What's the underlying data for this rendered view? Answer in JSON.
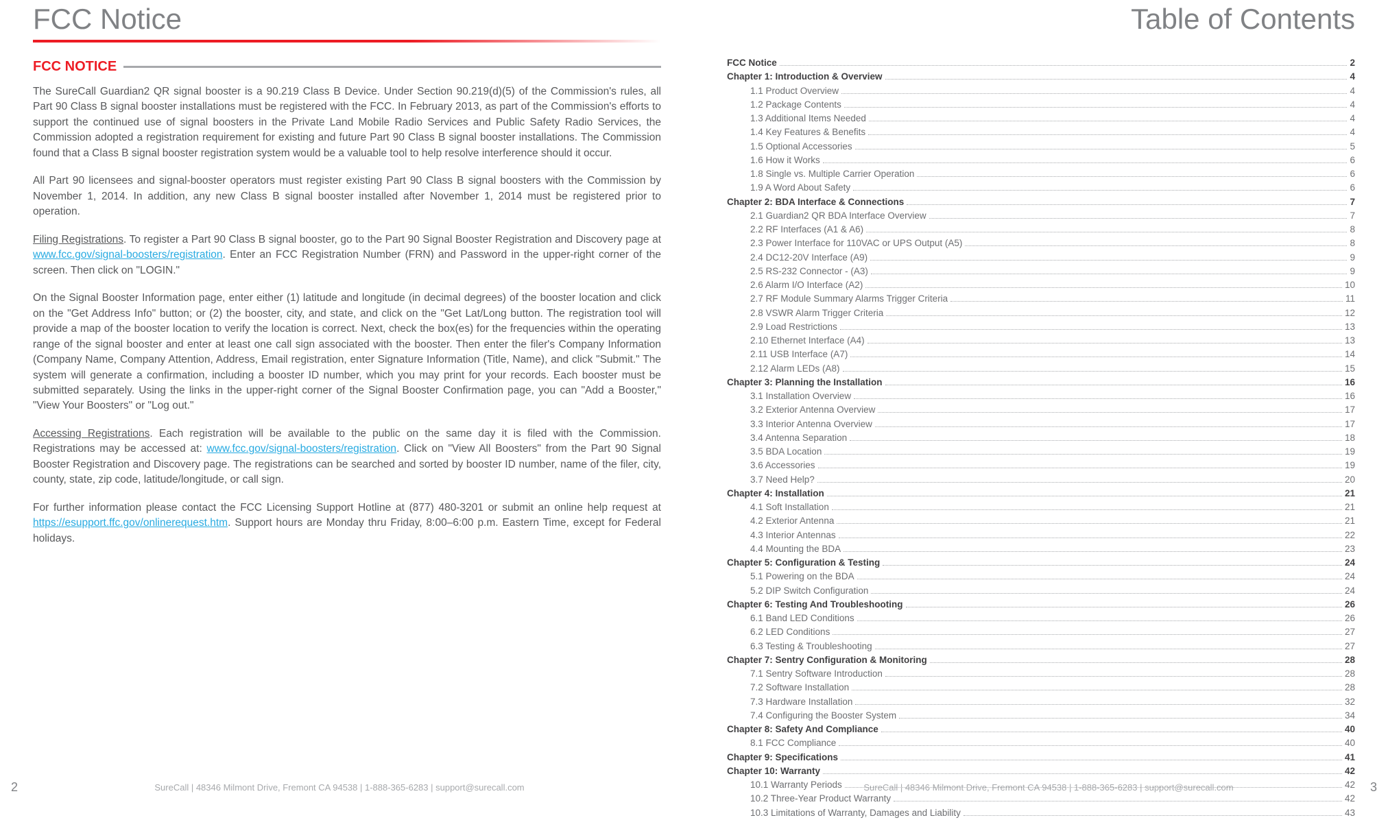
{
  "colors": {
    "accent_red": "#ed1c24",
    "link_blue": "#27aae1",
    "text_gray": "#58595b",
    "header_gray": "#808285",
    "rule_gray": "#a7a9ac",
    "footer_gray": "#a7a9ac",
    "background": "#ffffff"
  },
  "left": {
    "header": "FCC Notice",
    "section_title": "FCC NOTICE",
    "paragraphs": {
      "p1": "The SureCall Guardian2 QR signal booster is a 90.219 Class B Device. Under Section 90.219(d)(5) of the Commission's rules, all Part 90 Class B signal booster installations must be registered with the FCC. In February 2013, as part of the Commission's efforts to support the continued use of signal boosters in the Private Land Mobile Radio Services and Public Safety Radio Services, the Commission adopted a registration requirement for existing and future Part 90 Class B signal booster installations. The Commission found that a Class B signal booster registration system would be a valuable tool to help resolve interference should it occur.",
      "p2": "All Part 90 licensees and signal-booster operators must register existing Part 90 Class B signal boosters with the Commission by November 1, 2014. In addition, any new Class B signal booster installed after November 1, 2014 must be registered prior to operation.",
      "p3_lead": "Filing Registrations",
      "p3_a": ". To register a Part 90 Class B signal booster, go to the Part 90 Signal Booster Registration and Discovery page at ",
      "p3_link": "www.fcc.gov/signal-boosters/registration",
      "p3_b": ". Enter an FCC Registration Number (FRN) and Password in the upper-right corner of the screen. Then click on \"LOGIN.\"",
      "p4": "On the Signal Booster Information page, enter either (1) latitude and longitude (in decimal degrees) of the booster location and click on the \"Get Address Info\" button; or (2) the booster, city, and state, and click on the \"Get Lat/Long button. The registration tool will provide a map of the booster location to verify the location is correct. Next, check the box(es) for the frequencies within the operating range of the signal booster and enter at least one call sign associated with the booster. Then enter the filer's Company Information (Company Name, Company Attention, Address, Email registration, enter Signature Information (Title, Name), and click \"Submit.\" The system will generate a confirmation, including a booster ID number, which you may print for your records. Each booster must be submitted separately. Using the links in the upper-right corner of the Signal Booster Confirmation page, you can \"Add a Booster,\" \"View Your Boosters\" or \"Log out.\"",
      "p5_lead": "Accessing Registrations",
      "p5_a": ". Each registration will be available to the public on the same day it is filed with the Commission. Registrations may be accessed at: ",
      "p5_link": "www.fcc.gov/signal-boosters/registration",
      "p5_b": ". Click on \"View All Boosters\" from the Part 90 Signal Booster Registration and Discovery page. The registrations can be searched and sorted by booster ID number, name of the filer, city, county, state, zip code, latitude/longitude, or call sign.",
      "p6_a": "For further information please contact the FCC Licensing Support Hotline at (877) 480-3201 or submit an online help request at ",
      "p6_link": "https://esupport.ffc.gov/onlinerequest.htm",
      "p6_b": ". Support hours are Monday thru Friday, 8:00–6:00 p.m. Eastern Time, except for Federal holidays."
    },
    "page_number": "2"
  },
  "right": {
    "header": "Table of Contents",
    "page_number": "3",
    "toc": [
      {
        "type": "chapter",
        "label": "FCC Notice",
        "page": "2"
      },
      {
        "type": "chapter",
        "label": "Chapter 1: Introduction & Overview",
        "page": "4"
      },
      {
        "type": "sub",
        "label": "1.1 Product Overview",
        "page": "4"
      },
      {
        "type": "sub",
        "label": "1.2 Package Contents",
        "page": "4"
      },
      {
        "type": "sub",
        "label": "1.3 Additional Items Needed",
        "page": "4"
      },
      {
        "type": "sub",
        "label": "1.4 Key Features & Benefits",
        "page": "4"
      },
      {
        "type": "sub",
        "label": "1.5 Optional Accessories",
        "page": "5"
      },
      {
        "type": "sub",
        "label": "1.6 How it Works",
        "page": "6"
      },
      {
        "type": "sub",
        "label": "1.8 Single vs. Multiple Carrier Operation",
        "page": "6"
      },
      {
        "type": "sub",
        "label": "1.9 A Word About Safety",
        "page": "6"
      },
      {
        "type": "chapter",
        "label": "Chapter 2: BDA Interface & Connections",
        "page": "7"
      },
      {
        "type": "sub",
        "label": "2.1 Guardian2 QR BDA Interface Overview",
        "page": "7"
      },
      {
        "type": "sub",
        "label": "2.2 RF Interfaces (A1 & A6)",
        "page": "8"
      },
      {
        "type": "sub",
        "label": "2.3 Power Interface for 110VAC or UPS Output (A5)",
        "page": "8"
      },
      {
        "type": "sub",
        "label": "2.4 DC12-20V Interface (A9)",
        "page": "9"
      },
      {
        "type": "sub",
        "label": "2.5 RS-232 Connector - (A3)",
        "page": "9"
      },
      {
        "type": "sub",
        "label": "2.6 Alarm I/O Interface (A2)",
        "page": "10"
      },
      {
        "type": "sub",
        "label": "2.7 RF Module Summary Alarms Trigger Criteria",
        "page": "11"
      },
      {
        "type": "sub",
        "label": "2.8 VSWR Alarm Trigger Criteria",
        "page": "12"
      },
      {
        "type": "sub",
        "label": "2.9 Load Restrictions",
        "page": "13"
      },
      {
        "type": "sub",
        "label": "2.10 Ethernet Interface (A4)",
        "page": "13"
      },
      {
        "type": "sub",
        "label": "2.11 USB Interface (A7)",
        "page": "14"
      },
      {
        "type": "sub",
        "label": "2.12 Alarm LEDs (A8)",
        "page": "15"
      },
      {
        "type": "chapter",
        "label": "Chapter 3: Planning the Installation",
        "page": "16"
      },
      {
        "type": "sub",
        "label": "3.1 Installation Overview",
        "page": "16"
      },
      {
        "type": "sub",
        "label": "3.2 Exterior Antenna Overview",
        "page": "17"
      },
      {
        "type": "sub",
        "label": "3.3 Interior Antenna Overview",
        "page": "17"
      },
      {
        "type": "sub",
        "label": "3.4 Antenna Separation",
        "page": "18"
      },
      {
        "type": "sub",
        "label": "3.5 BDA Location ",
        "page": "19"
      },
      {
        "type": "sub",
        "label": "3.6 Accessories",
        "page": "19"
      },
      {
        "type": "sub",
        "label": "3.7 Need Help?",
        "page": "20"
      },
      {
        "type": "chapter",
        "label": "Chapter 4: Installation",
        "page": "21"
      },
      {
        "type": "sub",
        "label": "4.1 Soft Installation",
        "page": "21"
      },
      {
        "type": "sub",
        "label": "4.2 Exterior Antenna",
        "page": "21"
      },
      {
        "type": "sub",
        "label": "4.3 Interior Antennas",
        "page": "22"
      },
      {
        "type": "sub",
        "label": "4.4 Mounting the BDA",
        "page": "23"
      },
      {
        "type": "chapter",
        "label": "Chapter 5: Configuration & Testing",
        "page": "24"
      },
      {
        "type": "sub",
        "label": "5.1 Powering on the BDA",
        "page": "24"
      },
      {
        "type": "sub",
        "label": "5.2 DIP Switch Configuration",
        "page": "24"
      },
      {
        "type": "chapter",
        "label": "Chapter 6: Testing And Troubleshooting",
        "page": "26"
      },
      {
        "type": "sub",
        "label": "6.1 Band LED Conditions",
        "page": "26"
      },
      {
        "type": "sub",
        "label": "6.2 LED Conditions",
        "page": "27"
      },
      {
        "type": "sub",
        "label": "6.3 Testing & Troubleshooting",
        "page": "27"
      },
      {
        "type": "chapter",
        "label": "Chapter 7: Sentry Configuration & Monitoring",
        "page": "28"
      },
      {
        "type": "sub",
        "label": "7.1 Sentry Software Introduction",
        "page": "28"
      },
      {
        "type": "sub",
        "label": "7.2 Software Installation",
        "page": "28"
      },
      {
        "type": "sub",
        "label": "7.3 Hardware Installation",
        "page": "32"
      },
      {
        "type": "sub",
        "label": "7.4 Configuring the Booster System",
        "page": "34"
      },
      {
        "type": "chapter",
        "label": "Chapter 8: Safety And Compliance",
        "page": "40"
      },
      {
        "type": "sub",
        "label": "8.1 FCC Compliance ",
        "page": "40"
      },
      {
        "type": "chapter",
        "label": "Chapter 9: Specifications",
        "page": "41"
      },
      {
        "type": "chapter",
        "label": "Chapter 10: Warranty",
        "page": "42"
      },
      {
        "type": "sub",
        "label": "10.1 Warranty Periods",
        "page": "42"
      },
      {
        "type": "sub",
        "label": "10.2 Three-Year Product Warranty",
        "page": "42"
      },
      {
        "type": "sub",
        "label": "10.3 Limitations of Warranty, Damages and Liability",
        "page": "43"
      }
    ]
  },
  "footer": {
    "info": "SureCall  |  48346 Milmont Drive, Fremont CA 94538  |  1-888-365-6283  |  support@surecall.com"
  }
}
